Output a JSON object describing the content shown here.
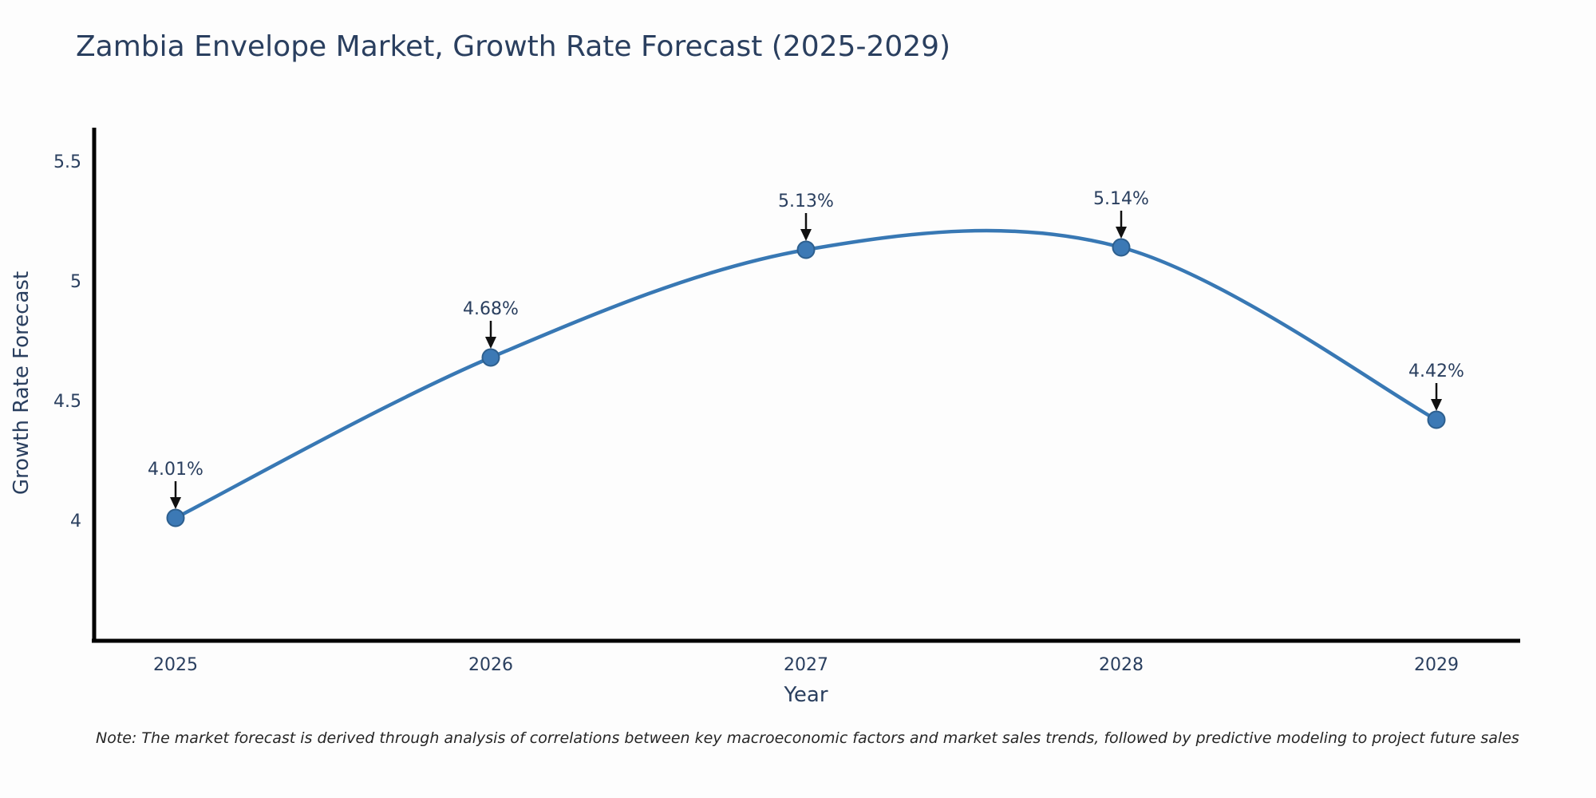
{
  "header": {
    "title": "Zambia Envelope Market, Growth Rate Forecast (2025-2029)"
  },
  "chart_data": {
    "type": "line",
    "title": "Zambia Envelope Market, Growth Rate Forecast (2025-2029)",
    "line_shape": "spline",
    "categories": [
      "2025",
      "2026",
      "2027",
      "2028",
      "2029"
    ],
    "x": [
      2025,
      2026,
      2027,
      2028,
      2029
    ],
    "values": [
      4.01,
      4.68,
      5.13,
      5.14,
      4.42
    ],
    "point_labels": [
      "4.01%",
      "4.68%",
      "5.13%",
      "5.14%",
      "4.42%"
    ],
    "xlabel": "Year",
    "ylabel": "Growth Rate Forecast",
    "yticks": {
      "values": [
        4,
        4.5,
        5,
        5.5
      ],
      "labels": [
        "4",
        "4.5",
        "5",
        "5.5"
      ]
    },
    "ylim": [
      3.5,
      5.65
    ],
    "grid": false,
    "legend": "none",
    "colors": {
      "line": "#3878b4",
      "marker": "#3c79b5",
      "marker_edge": "#2d5f8e",
      "axis": "#000000",
      "text": "#2a3f5f",
      "annotation_text": "#2a3f5f",
      "annotation_arrow": "#111111"
    }
  },
  "footnote": {
    "text": "Note: The market forecast is derived through analysis of correlations between key macroeconomic factors and market sales trends, followed by predictive modeling to project future sales"
  }
}
